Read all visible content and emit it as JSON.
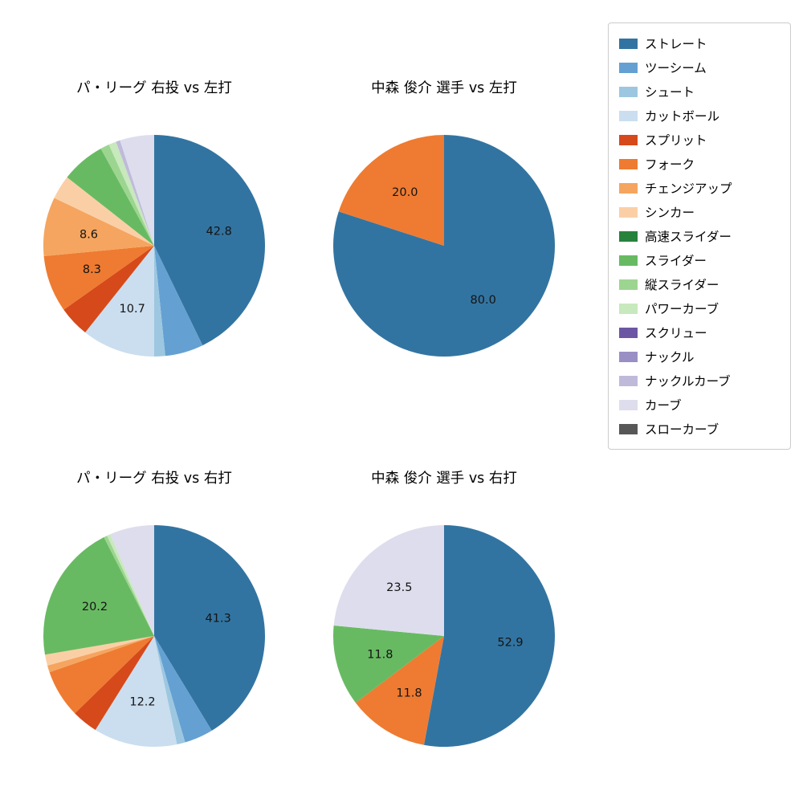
{
  "figure": {
    "background_color": "#ffffff",
    "text_color": "#000000"
  },
  "legend": {
    "position": "upper right",
    "border_color": "#cccccc",
    "items": [
      {
        "key": "straight",
        "label": "ストレート",
        "color": "#3274a1"
      },
      {
        "key": "two-seam",
        "label": "ツーシーム",
        "color": "#64a1d2"
      },
      {
        "key": "shoot",
        "label": "シュート",
        "color": "#9dc7e0"
      },
      {
        "key": "cutter",
        "label": "カットボール",
        "color": "#cadeef"
      },
      {
        "key": "splitter",
        "label": "スプリット",
        "color": "#d6491a"
      },
      {
        "key": "forkball",
        "label": "フォーク",
        "color": "#ee7b31"
      },
      {
        "key": "changeup",
        "label": "チェンジアップ",
        "color": "#f5a55f"
      },
      {
        "key": "sinker",
        "label": "シンカー",
        "color": "#fbcfa6"
      },
      {
        "key": "fast-slider",
        "label": "高速スライダー",
        "color": "#27823c"
      },
      {
        "key": "slider",
        "label": "スライダー",
        "color": "#68ba62"
      },
      {
        "key": "vertical-slider",
        "label": "縦スライダー",
        "color": "#9cd590"
      },
      {
        "key": "power-curve",
        "label": "パワーカーブ",
        "color": "#c8e8bd"
      },
      {
        "key": "screwball",
        "label": "スクリュー",
        "color": "#6c56a3"
      },
      {
        "key": "knuckle",
        "label": "ナックル",
        "color": "#9a8fc4"
      },
      {
        "key": "knuckle-curve",
        "label": "ナックルカーブ",
        "color": "#bfbada"
      },
      {
        "key": "curve",
        "label": "カーブ",
        "color": "#dddded"
      },
      {
        "key": "slow-curve",
        "label": "スローカーブ",
        "color": "#575757"
      }
    ]
  },
  "chart_data": [
    {
      "type": "pie",
      "title": "パ・リーグ 右投 vs 左打",
      "start_angle_deg": 90,
      "direction": "clockwise",
      "label_radius_ratio": 0.6,
      "slices": [
        {
          "name": "ストレート",
          "key": "straight",
          "value": 42.8,
          "label": "42.8"
        },
        {
          "name": "ツーシーム",
          "key": "two-seam",
          "value": 5.6,
          "label": ""
        },
        {
          "name": "シュート",
          "key": "shoot",
          "value": 1.6,
          "label": ""
        },
        {
          "name": "カットボール",
          "key": "cutter",
          "value": 10.7,
          "label": "10.7"
        },
        {
          "name": "スプリット",
          "key": "splitter",
          "value": 4.5,
          "label": ""
        },
        {
          "name": "フォーク",
          "key": "forkball",
          "value": 8.3,
          "label": "8.3"
        },
        {
          "name": "チェンジアップ",
          "key": "changeup",
          "value": 8.6,
          "label": "8.6"
        },
        {
          "name": "シンカー",
          "key": "sinker",
          "value": 3.5,
          "label": ""
        },
        {
          "name": "スライダー",
          "key": "slider",
          "value": 6.4,
          "label": ""
        },
        {
          "name": "縦スライダー",
          "key": "vertical-slider",
          "value": 1.3,
          "label": ""
        },
        {
          "name": "パワーカーブ",
          "key": "power-curve",
          "value": 1.1,
          "label": ""
        },
        {
          "name": "ナックルカーブ",
          "key": "knuckle-curve",
          "value": 0.6,
          "label": ""
        },
        {
          "name": "カーブ",
          "key": "curve",
          "value": 5.0,
          "label": ""
        }
      ]
    },
    {
      "type": "pie",
      "title": "中森 俊介 選手 vs 左打",
      "start_angle_deg": 90,
      "direction": "clockwise",
      "label_radius_ratio": 0.6,
      "slices": [
        {
          "name": "ストレート",
          "key": "straight",
          "value": 80.0,
          "label": "80.0"
        },
        {
          "name": "フォーク",
          "key": "forkball",
          "value": 20.0,
          "label": "20.0"
        }
      ]
    },
    {
      "type": "pie",
      "title": "パ・リーグ 右投 vs 右打",
      "start_angle_deg": 90,
      "direction": "clockwise",
      "label_radius_ratio": 0.6,
      "slices": [
        {
          "name": "ストレート",
          "key": "straight",
          "value": 41.3,
          "label": "41.3"
        },
        {
          "name": "ツーシーム",
          "key": "two-seam",
          "value": 4.2,
          "label": ""
        },
        {
          "name": "シュート",
          "key": "shoot",
          "value": 1.2,
          "label": ""
        },
        {
          "name": "カットボール",
          "key": "cutter",
          "value": 12.2,
          "label": "12.2"
        },
        {
          "name": "スプリット",
          "key": "splitter",
          "value": 3.8,
          "label": ""
        },
        {
          "name": "フォーク",
          "key": "forkball",
          "value": 7.0,
          "label": ""
        },
        {
          "name": "チェンジアップ",
          "key": "changeup",
          "value": 1.0,
          "label": ""
        },
        {
          "name": "シンカー",
          "key": "sinker",
          "value": 1.6,
          "label": ""
        },
        {
          "name": "スライダー",
          "key": "slider",
          "value": 20.2,
          "label": "20.2"
        },
        {
          "name": "縦スライダー",
          "key": "vertical-slider",
          "value": 0.5,
          "label": ""
        },
        {
          "name": "パワーカーブ",
          "key": "power-curve",
          "value": 0.5,
          "label": ""
        },
        {
          "name": "カーブ",
          "key": "curve",
          "value": 6.5,
          "label": ""
        }
      ]
    },
    {
      "type": "pie",
      "title": "中森 俊介 選手 vs 右打",
      "start_angle_deg": 90,
      "direction": "clockwise",
      "label_radius_ratio": 0.6,
      "slices": [
        {
          "name": "ストレート",
          "key": "straight",
          "value": 52.9,
          "label": "52.9"
        },
        {
          "name": "フォーク",
          "key": "forkball",
          "value": 11.8,
          "label": "11.8"
        },
        {
          "name": "スライダー",
          "key": "slider",
          "value": 11.8,
          "label": "11.8"
        },
        {
          "name": "カーブ",
          "key": "curve",
          "value": 23.5,
          "label": "23.5"
        }
      ]
    }
  ]
}
